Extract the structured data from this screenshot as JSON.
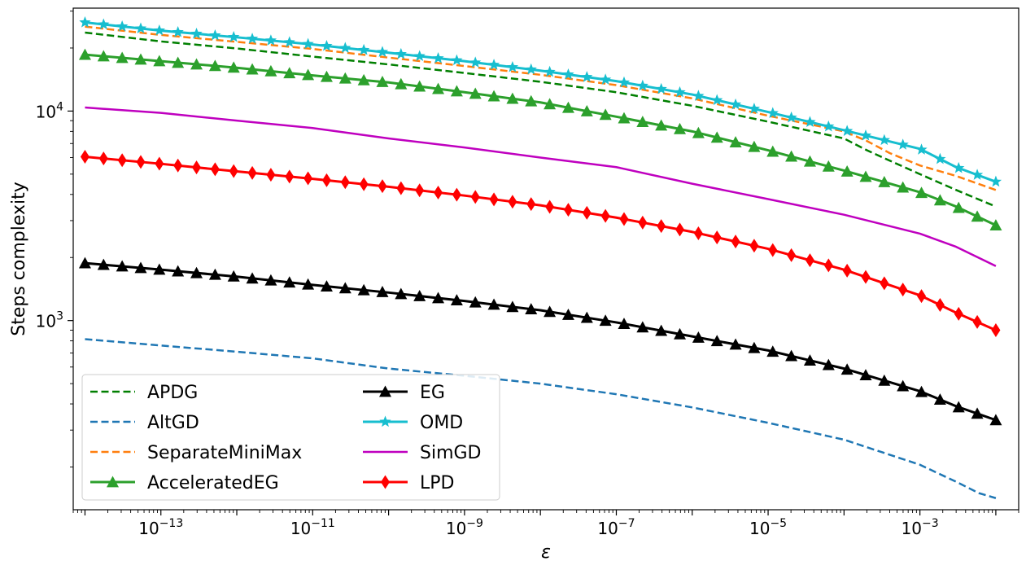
{
  "chart_data": {
    "type": "line",
    "title": "",
    "xlabel": "ε",
    "ylabel": "Steps complexity",
    "x_scale": "log",
    "y_scale": "log",
    "x_data_range": [
      1e-14,
      0.01
    ],
    "xlim": [
      7e-15,
      0.02
    ],
    "ylim": [
      125,
      31000
    ],
    "grid": false,
    "legend": {
      "placement": "lower-left",
      "columns": 2
    },
    "x_ticks": [
      {
        "exponent": "−13",
        "base": "10"
      },
      {
        "exponent": "−11",
        "base": "10"
      },
      {
        "exponent": "−9",
        "base": "10"
      },
      {
        "exponent": "−7",
        "base": "10"
      },
      {
        "exponent": "−5",
        "base": "10"
      },
      {
        "exponent": "−3",
        "base": "10"
      }
    ],
    "y_ticks": [
      {
        "exponent": "3",
        "base": "10"
      },
      {
        "exponent": "4",
        "base": "10"
      }
    ],
    "series": [
      {
        "name": "APDG",
        "color": "#007f00",
        "dash": "dashed",
        "marker": "none",
        "width": 2.5,
        "x": [
          1e-14,
          1e-13,
          1e-12,
          1e-11,
          1e-10,
          1e-09,
          1e-08,
          1e-07,
          1e-06,
          1e-05,
          0.0001,
          0.0002,
          0.0004,
          0.001,
          0.003,
          0.01
        ],
        "y": [
          23700,
          21500,
          19900,
          18200,
          16700,
          15200,
          13800,
          12300,
          10600,
          8900,
          7400,
          6500,
          5800,
          5000,
          4200,
          3500
        ]
      },
      {
        "name": "AltGD",
        "color": "#1f77b4",
        "dash": "dashed",
        "marker": "none",
        "width": 2.5,
        "x": [
          1e-14,
          1e-13,
          1e-12,
          1e-11,
          1e-10,
          1e-09,
          1e-08,
          1e-07,
          1e-06,
          1e-05,
          0.0001,
          0.001,
          0.003,
          0.006,
          0.01
        ],
        "y": [
          815,
          760,
          710,
          660,
          590,
          545,
          500,
          445,
          385,
          325,
          270,
          205,
          170,
          150,
          142
        ]
      },
      {
        "name": "SeparateMiniMax",
        "color": "#ff7f0e",
        "dash": "dashed",
        "marker": "none",
        "width": 2.5,
        "x": [
          1e-14,
          1e-13,
          1e-12,
          1e-11,
          1e-10,
          1e-09,
          1e-08,
          1e-07,
          1e-06,
          1e-05,
          0.0001,
          0.0002,
          0.0004,
          0.001,
          0.003,
          0.01
        ],
        "y": [
          25300,
          23100,
          21400,
          19800,
          18000,
          16400,
          14900,
          13300,
          11500,
          9500,
          8000,
          7200,
          6300,
          5500,
          4900,
          4200
        ]
      },
      {
        "name": "AcceleratedEG",
        "color": "#2ca02c",
        "dash": "solid",
        "marker": "triangle",
        "width": 3,
        "x": [
          1e-14,
          1e-13,
          1e-12,
          1e-11,
          1e-10,
          1e-09,
          1e-08,
          1e-07,
          1e-06,
          1e-05,
          0.0001,
          0.001,
          0.003,
          0.01
        ],
        "y": [
          18600,
          17300,
          16100,
          14800,
          13700,
          12300,
          11000,
          9400,
          8000,
          6500,
          5200,
          4100,
          3500,
          2850
        ]
      },
      {
        "name": "EG",
        "color": "#000000",
        "dash": "solid",
        "marker": "triangle",
        "width": 3,
        "x": [
          1e-14,
          1e-13,
          1e-12,
          1e-11,
          1e-10,
          1e-09,
          1e-08,
          1e-07,
          1e-06,
          1e-05,
          0.0001,
          0.001,
          0.003,
          0.01
        ],
        "y": [
          1880,
          1750,
          1620,
          1480,
          1360,
          1240,
          1120,
          980,
          840,
          720,
          590,
          460,
          390,
          335
        ]
      },
      {
        "name": "OMD",
        "color": "#17becf",
        "dash": "solid",
        "marker": "star",
        "width": 3,
        "x": [
          1e-14,
          1e-13,
          1e-12,
          1e-11,
          1e-10,
          1e-09,
          1e-08,
          1e-07,
          1e-06,
          1e-05,
          0.0001,
          0.001,
          0.003,
          0.01
        ],
        "y": [
          26500,
          24200,
          22500,
          20800,
          19000,
          17300,
          15600,
          13900,
          12000,
          9900,
          8100,
          6600,
          5400,
          4600
        ]
      },
      {
        "name": "SimGD",
        "color": "#bf00bf",
        "dash": "solid",
        "marker": "none",
        "width": 2.5,
        "x": [
          1e-14,
          1e-13,
          1e-12,
          1e-11,
          1e-10,
          1e-09,
          1e-08,
          1e-07,
          1e-06,
          1e-05,
          0.0001,
          0.001,
          0.003,
          0.01
        ],
        "y": [
          10400,
          9800,
          9000,
          8300,
          7400,
          6700,
          6000,
          5400,
          4500,
          3800,
          3200,
          2600,
          2250,
          1820
        ]
      },
      {
        "name": "LPD",
        "color": "#ff0000",
        "dash": "solid",
        "marker": "diamond",
        "width": 3,
        "x": [
          1e-14,
          1e-13,
          1e-12,
          1e-11,
          1e-10,
          1e-09,
          1e-08,
          1e-07,
          1e-06,
          1e-05,
          0.0001,
          0.001,
          0.003,
          0.01
        ],
        "y": [
          6050,
          5600,
          5150,
          4750,
          4350,
          3950,
          3550,
          3100,
          2650,
          2200,
          1750,
          1320,
          1090,
          900
        ]
      }
    ]
  }
}
